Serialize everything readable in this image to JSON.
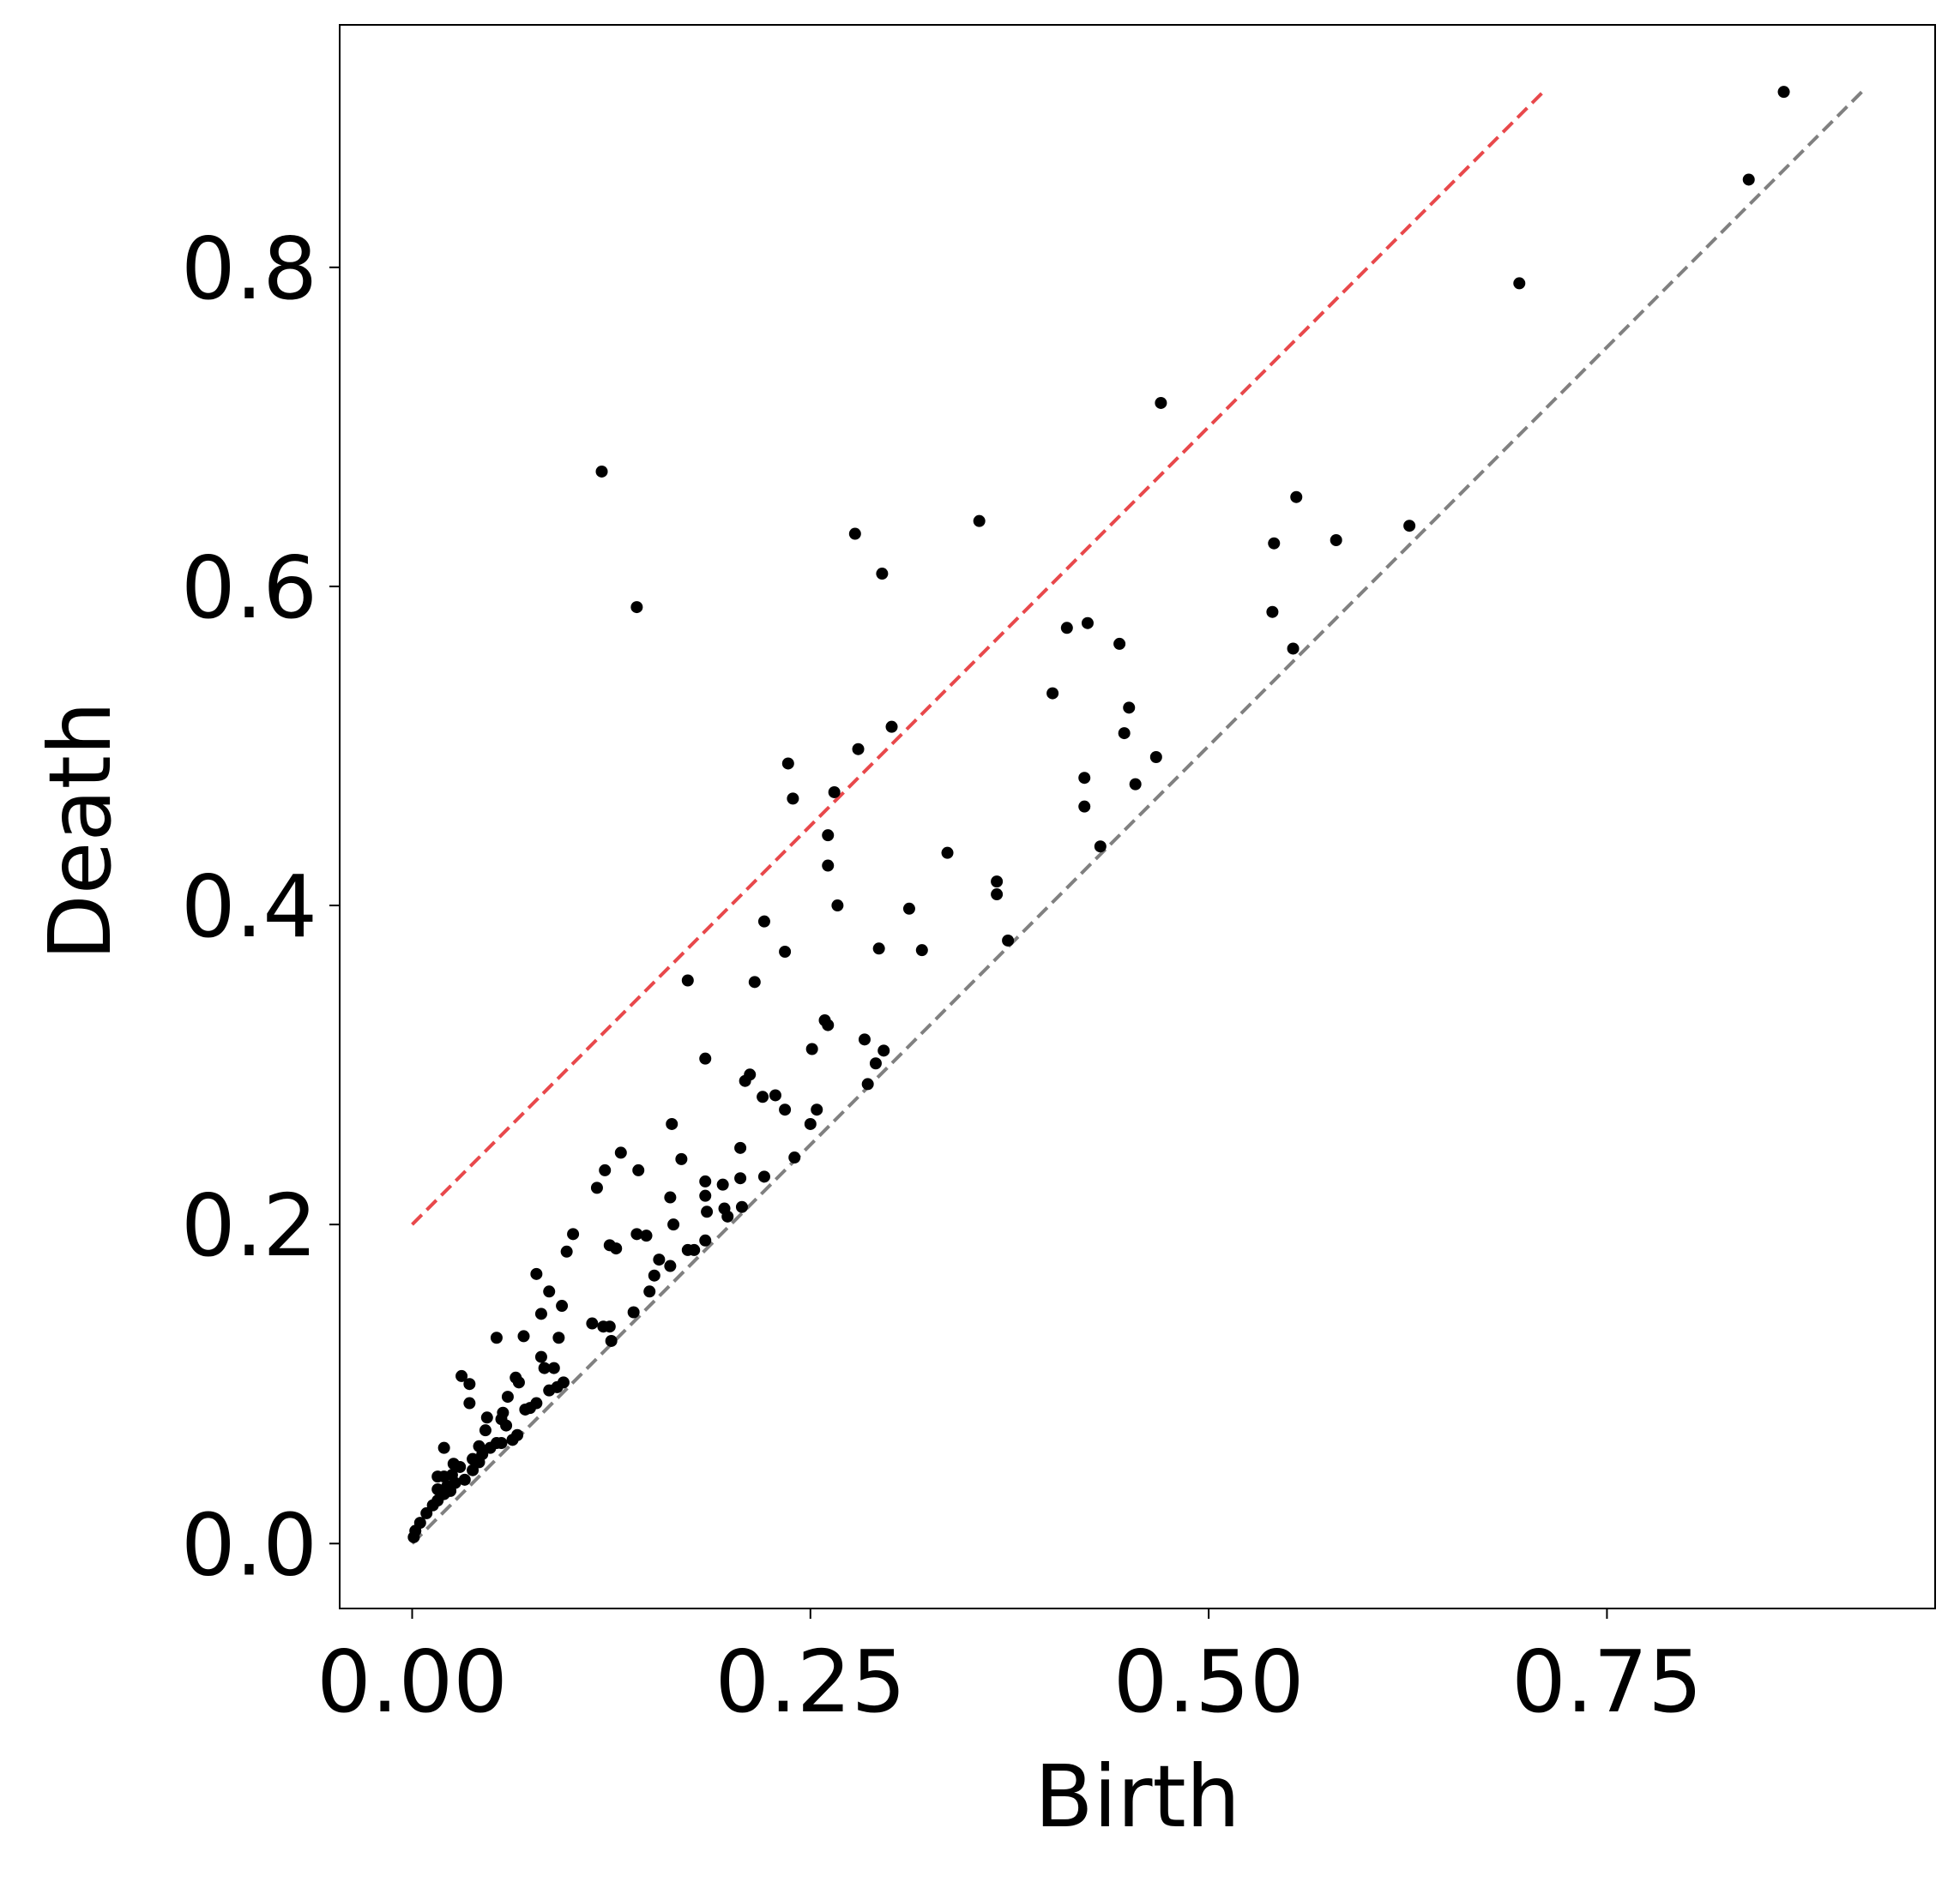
{
  "chart_data": {
    "type": "scatter",
    "x_label": "Birth",
    "y_label": "Death",
    "xlim": [
      -0.0455,
      0.956
    ],
    "ylim": [
      -0.0407,
      0.952
    ],
    "xticks": [
      {
        "value": 0,
        "label": "0.00"
      },
      0.25,
      {
        "value": 0.5,
        "label": "0.50"
      },
      0.75
    ],
    "yticks": [
      {
        "value": 0,
        "label": "0.0"
      },
      0.2,
      0.4,
      0.6,
      0.8
    ],
    "series": [
      {
        "color": "#000000",
        "x": [
          0.861,
          0.839,
          0.695,
          0.47,
          0.119,
          0.356,
          0.555,
          0.278,
          0.541,
          0.58,
          0.626,
          0.295,
          0.141,
          0.54,
          0.411,
          0.424,
          0.444,
          0.553,
          0.402,
          0.45,
          0.301,
          0.447,
          0.236,
          0.28,
          0.467,
          0.422,
          0.454,
          0.239,
          0.265,
          0.422,
          0.261,
          0.432,
          0.336,
          0.261,
          0.367,
          0.367,
          0.267,
          0.312,
          0.221,
          0.374,
          0.293,
          0.32,
          0.234,
          0.173,
          0.215,
          0.259,
          0.261,
          0.284,
          0.296,
          0.251,
          0.184,
          0.291,
          0.212,
          0.209,
          0.228,
          0.286,
          0.22,
          0.234,
          0.254,
          0.25,
          0.163,
          0.131,
          0.24,
          0.206,
          0.121,
          0.142,
          0.169,
          0.116,
          0.184,
          0.195,
          0.162,
          0.184,
          0.221,
          0.206,
          0.185,
          0.196,
          0.207,
          0.198,
          0.101,
          0.141,
          0.147,
          0.164,
          0.124,
          0.128,
          0.184,
          0.173,
          0.177,
          0.097,
          0.155,
          0.162,
          0.152,
          0.078,
          0.149,
          0.086,
          0.094,
          0.081,
          0.139,
          0.113,
          0.12,
          0.124,
          0.125,
          0.053,
          0.07,
          0.092,
          0.081,
          0.089,
          0.083,
          0.031,
          0.036,
          0.065,
          0.067,
          0.095,
          0.091,
          0.086,
          0.06,
          0.036,
          0.078,
          0.074,
          0.071,
          0.057,
          0.047,
          0.056,
          0.059,
          0.046,
          0.066,
          0.063,
          0.053,
          0.056,
          0.042,
          0.02,
          0.049,
          0.044,
          0.038,
          0.042,
          0.038,
          0.026,
          0.03,
          0.016,
          0.02,
          0.025,
          0.033,
          0.027,
          0.022,
          0.016,
          0.024,
          0.02,
          0.016,
          0.013,
          0.009,
          0.005,
          0.002,
          0.001
        ],
        "values": [
          0.91,
          0.855,
          0.79,
          0.715,
          0.672,
          0.641,
          0.656,
          0.633,
          0.627,
          0.629,
          0.638,
          0.608,
          0.587,
          0.584,
          0.574,
          0.577,
          0.564,
          0.561,
          0.533,
          0.524,
          0.512,
          0.508,
          0.489,
          0.498,
          0.493,
          0.48,
          0.476,
          0.467,
          0.471,
          0.462,
          0.444,
          0.437,
          0.433,
          0.425,
          0.415,
          0.407,
          0.4,
          0.398,
          0.39,
          0.378,
          0.373,
          0.372,
          0.371,
          0.353,
          0.352,
          0.328,
          0.325,
          0.316,
          0.309,
          0.31,
          0.304,
          0.301,
          0.294,
          0.29,
          0.281,
          0.288,
          0.28,
          0.272,
          0.272,
          0.263,
          0.263,
          0.245,
          0.242,
          0.248,
          0.234,
          0.234,
          0.241,
          0.223,
          0.227,
          0.225,
          0.217,
          0.218,
          0.23,
          0.229,
          0.208,
          0.21,
          0.211,
          0.205,
          0.194,
          0.194,
          0.193,
          0.2,
          0.187,
          0.185,
          0.19,
          0.184,
          0.184,
          0.183,
          0.178,
          0.174,
          0.168,
          0.169,
          0.158,
          0.158,
          0.149,
          0.144,
          0.145,
          0.138,
          0.136,
          0.136,
          0.127,
          0.129,
          0.13,
          0.129,
          0.117,
          0.11,
          0.11,
          0.105,
          0.1,
          0.104,
          0.101,
          0.101,
          0.098,
          0.096,
          0.092,
          0.088,
          0.088,
          0.085,
          0.084,
          0.082,
          0.079,
          0.078,
          0.074,
          0.071,
          0.068,
          0.065,
          0.063,
          0.063,
          0.061,
          0.06,
          0.06,
          0.056,
          0.053,
          0.051,
          0.046,
          0.05,
          0.048,
          0.042,
          0.042,
          0.043,
          0.04,
          0.038,
          0.036,
          0.034,
          0.033,
          0.031,
          0.027,
          0.024,
          0.019,
          0.013,
          0.008,
          0.004
        ]
      }
    ],
    "reference_lines": [
      {
        "color": "#808080",
        "x": [
          0,
          0.91
        ],
        "values": [
          0,
          0.91
        ]
      },
      {
        "color": "#e8484b",
        "x": [
          0,
          0.71
        ],
        "values": [
          0.2,
          0.91
        ]
      }
    ]
  }
}
